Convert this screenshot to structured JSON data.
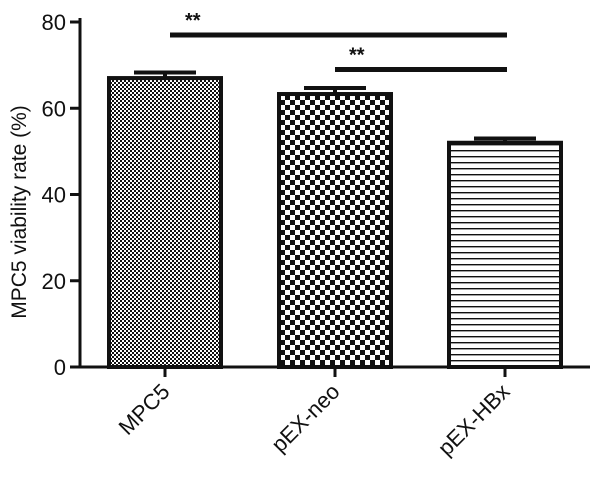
{
  "chart_data": {
    "type": "bar",
    "title": "",
    "xlabel": "",
    "ylabel": "MPC5 viability rate (%)",
    "ylim": [
      0,
      80
    ],
    "yticks": [
      0,
      20,
      40,
      60,
      80
    ],
    "yticks_text": [
      "0",
      "20",
      "40",
      "60",
      "80"
    ],
    "categories": [
      "MPC5",
      "pEX-neo",
      "pEX-HBx"
    ],
    "values": [
      67,
      63.3,
      52
    ],
    "errors": [
      1.3,
      1.4,
      1.0
    ],
    "patterns": [
      "fine-checker",
      "coarse-checker",
      "horizontal-lines"
    ],
    "significance": [
      {
        "from": 0,
        "to": 2,
        "label": "**",
        "y": 77
      },
      {
        "from": 1,
        "to": 2,
        "label": "**",
        "y": 69
      }
    ],
    "grid": false,
    "legend": "none",
    "colors": {
      "bar_outline": "#111111",
      "pattern": "#111111",
      "fill": "#ffffff",
      "axis": "#111111"
    }
  }
}
